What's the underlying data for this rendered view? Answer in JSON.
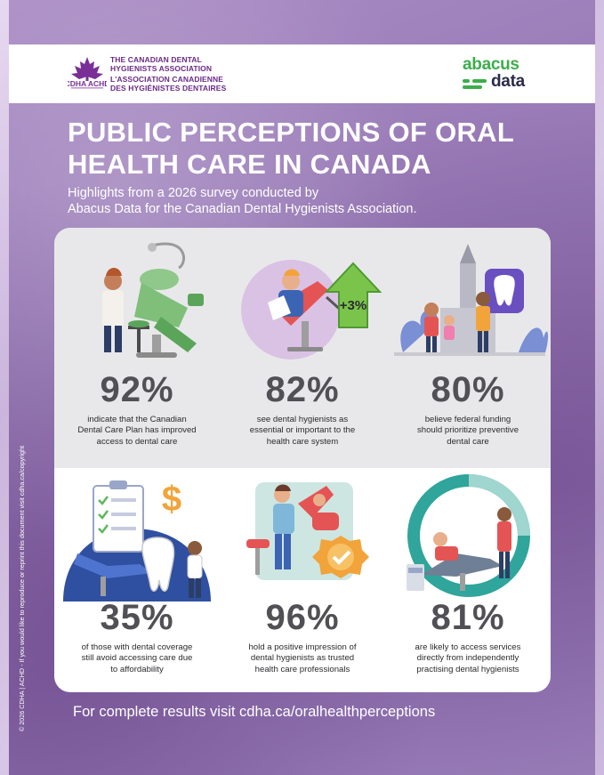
{
  "colors": {
    "purple_brand": "#6b2a86",
    "green_brand": "#3cae4b",
    "stat_gray": "#505055",
    "accent_green": "#5cb85c",
    "accent_teal": "#2fa59b",
    "accent_red": "#e55454",
    "accent_blue": "#3c64b4",
    "accent_orange": "#f2a33a"
  },
  "header": {
    "cdha_logo_text": "CDHA ACHD",
    "cdha_name_en": [
      "THE CANADIAN DENTAL",
      "HYGIENISTS ASSOCIATION"
    ],
    "cdha_name_fr": [
      "L'ASSOCIATION CANADIENNE",
      "DES HYGIÉNISTES DENTAIRES"
    ],
    "abacus_word": "abacus",
    "data_word": "data"
  },
  "title": [
    "PUBLIC PERCEPTIONS OF ORAL",
    "HEALTH CARE IN CANADA"
  ],
  "subtitle": [
    "Highlights from a 2026 survey conducted by",
    "Abacus Data for the Canadian Dental Hygienists Association."
  ],
  "stats": [
    {
      "value": "92%",
      "lines": [
        "indicate that the Canadian",
        "Dental Care Plan has improved",
        "access to dental care"
      ],
      "icon": "dental-chair-hygienist-icon"
    },
    {
      "value": "82%",
      "lines": [
        "see dental hygienists as",
        "essential or important to the",
        "health care system"
      ],
      "icon": "patient-growth-arrow-icon",
      "badge": "+3%"
    },
    {
      "value": "80%",
      "lines": [
        "believe federal funding",
        "should prioritize preventive",
        "dental care"
      ],
      "icon": "family-parliament-tooth-icon"
    },
    {
      "value": "35%",
      "lines": [
        "of those with dental coverage",
        "still avoid accessing care due",
        "to affordability"
      ],
      "icon": "checklist-dollar-chair-icon",
      "badge": "$"
    },
    {
      "value": "96%",
      "lines": [
        "hold a positive impression of",
        "dental hygienists as trusted",
        "health care professionals"
      ],
      "icon": "hygienist-badge-check-icon"
    },
    {
      "value": "81%",
      "lines": [
        "are likely to access services",
        "directly from independently",
        "practising dental hygienists"
      ],
      "icon": "independent-practice-ring-icon"
    }
  ],
  "footer": "For complete results visit cdha.ca/oralhealthperceptions",
  "side_note": "© 2026 CDHA | ACHD - If you would like to reproduce or reprint this document visit cdha.ca/copyright"
}
